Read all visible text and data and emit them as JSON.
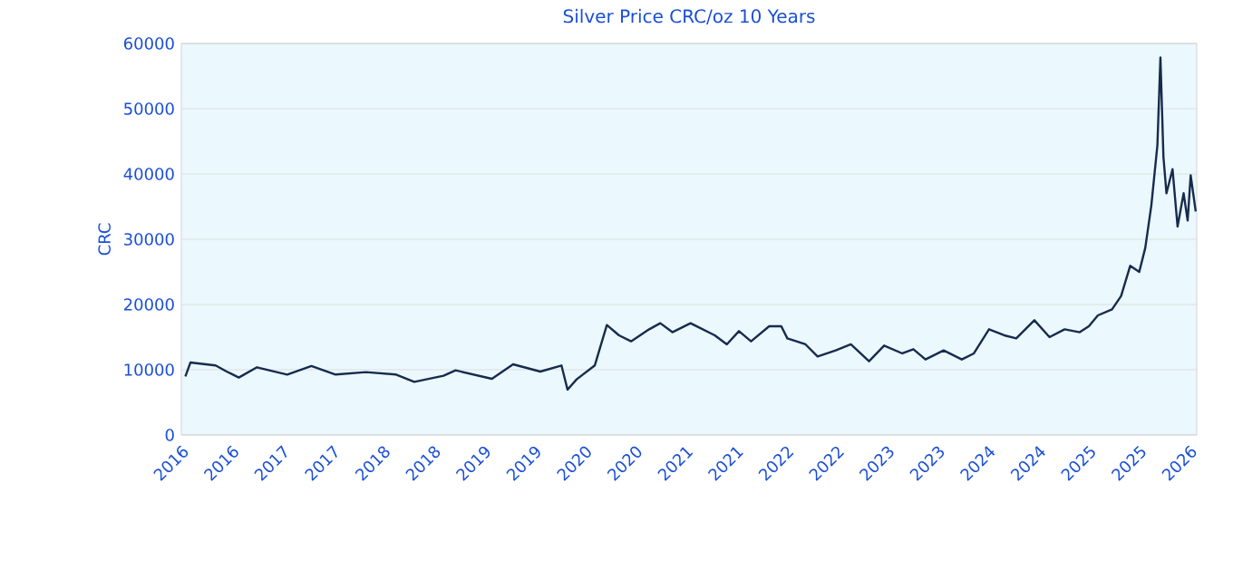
{
  "chart_data": {
    "type": "line",
    "title": "Silver Price CRC/oz 10 Years",
    "ylabel": "CRC",
    "x": [
      2016.04,
      2016.09,
      2016.34,
      2016.45,
      2016.57,
      2016.75,
      2017.05,
      2017.29,
      2017.53,
      2017.83,
      2018.13,
      2018.31,
      2018.6,
      2018.72,
      2019.08,
      2019.29,
      2019.56,
      2019.77,
      2019.83,
      2019.92,
      2020.1,
      2020.22,
      2020.34,
      2020.46,
      2020.64,
      2020.75,
      2020.87,
      2021.05,
      2021.29,
      2021.41,
      2021.53,
      2021.65,
      2021.83,
      2021.95,
      2022.01,
      2022.19,
      2022.31,
      2022.49,
      2022.64,
      2022.82,
      2022.97,
      2023.15,
      2023.26,
      2023.38,
      2023.56,
      2023.74,
      2023.86,
      2024.01,
      2024.16,
      2024.28,
      2024.46,
      2024.61,
      2024.76,
      2024.91,
      2025.0,
      2025.09,
      2025.23,
      2025.32,
      2025.41,
      2025.5,
      2025.56,
      2025.62,
      2025.68,
      2025.71,
      2025.74,
      2025.77,
      2025.83,
      2025.88,
      2025.94,
      2025.98,
      2026.01,
      2026.06
    ],
    "series": [
      {
        "color": "#172b4d",
        "values": [
          8980,
          11100,
          10650,
          9720,
          8800,
          10370,
          9260,
          10560,
          9260,
          9630,
          9260,
          8150,
          9070,
          9910,
          8610,
          10830,
          9720,
          10650,
          6940,
          8520,
          10650,
          16850,
          15280,
          14350,
          16200,
          17130,
          15750,
          17130,
          15280,
          13890,
          15920,
          14350,
          16670,
          16670,
          14810,
          13890,
          12040,
          12960,
          13890,
          11300,
          13700,
          12500,
          13150,
          11570,
          12960,
          11570,
          12500,
          16200,
          15280,
          14810,
          17590,
          15000,
          16200,
          15750,
          16670,
          18330,
          19260,
          21300,
          25930,
          25000,
          28700,
          35190,
          44440,
          57860,
          42590,
          37040,
          40740,
          31940,
          37040,
          32870,
          39810,
          34260
        ]
      }
    ],
    "xlim": [
      2016.0,
      2026.07
    ],
    "ylim": [
      0,
      60000
    ],
    "xticks": [
      {
        "value": 2016.0,
        "label": "2016"
      },
      {
        "value": 2016.5,
        "label": "2016"
      },
      {
        "value": 2017.0,
        "label": "2017"
      },
      {
        "value": 2017.5,
        "label": "2017"
      },
      {
        "value": 2018.0,
        "label": "2018"
      },
      {
        "value": 2018.5,
        "label": "2018"
      },
      {
        "value": 2019.0,
        "label": "2019"
      },
      {
        "value": 2019.5,
        "label": "2019"
      },
      {
        "value": 2020.0,
        "label": "2020"
      },
      {
        "value": 2020.5,
        "label": "2020"
      },
      {
        "value": 2021.0,
        "label": "2021"
      },
      {
        "value": 2021.5,
        "label": "2021"
      },
      {
        "value": 2022.0,
        "label": "2022"
      },
      {
        "value": 2022.5,
        "label": "2022"
      },
      {
        "value": 2023.0,
        "label": "2023"
      },
      {
        "value": 2023.5,
        "label": "2023"
      },
      {
        "value": 2024.0,
        "label": "2024"
      },
      {
        "value": 2024.5,
        "label": "2024"
      },
      {
        "value": 2025.0,
        "label": "2025"
      },
      {
        "value": 2025.5,
        "label": "2025"
      },
      {
        "value": 2026.0,
        "label": "2026"
      }
    ],
    "yticks": [
      0,
      10000,
      20000,
      30000,
      40000,
      50000,
      60000
    ],
    "grid": "y",
    "marker": "none",
    "line_style": "solid"
  }
}
